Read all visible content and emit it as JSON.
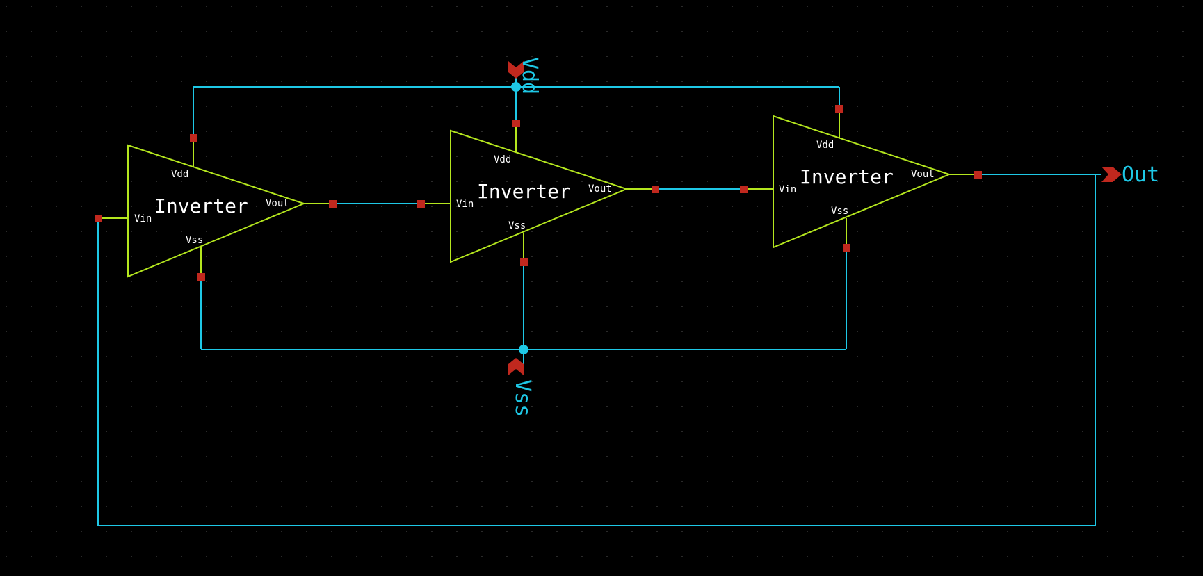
{
  "colors": {
    "background": "#000000",
    "wire": "#1ec8e6",
    "symbol": "#b4e61e",
    "pin": "#c0281e",
    "text": "#ffffff",
    "grid": "#2a2a2a"
  },
  "inverters": [
    {
      "name": "Inverter",
      "pin_vin": "Vin",
      "pin_vout": "Vout",
      "pin_vdd": "Vdd",
      "pin_vss": "Vss"
    },
    {
      "name": "Inverter",
      "pin_vin": "Vin",
      "pin_vout": "Vout",
      "pin_vdd": "Vdd",
      "pin_vss": "Vss"
    },
    {
      "name": "Inverter",
      "pin_vin": "Vin",
      "pin_vout": "Vout",
      "pin_vdd": "Vdd",
      "pin_vss": "Vss"
    }
  ],
  "nets": {
    "vdd": "Vdd",
    "vss": "Vss",
    "out": "Out"
  }
}
